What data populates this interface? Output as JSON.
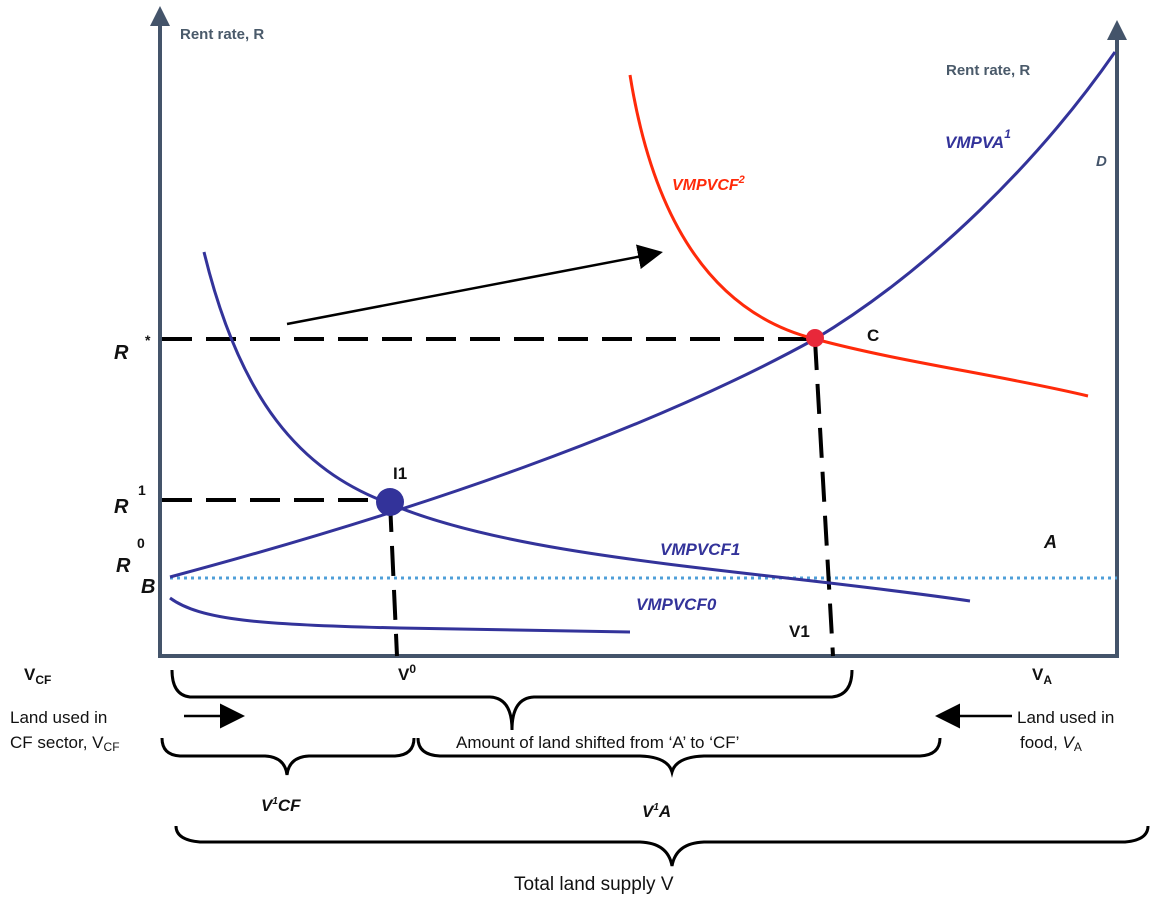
{
  "axes": {
    "left_title": "Rent rate, R",
    "right_title": "Rent rate, R",
    "left_origin_label": "V",
    "left_origin_sub": "CF",
    "right_origin_label": "V",
    "right_origin_sub": "A",
    "v0_label": "V",
    "v0_sup": "0",
    "v1_label": "V1"
  },
  "rent_levels": {
    "r_star": "R",
    "r_star_sup": "*",
    "r1": "R",
    "r1_sup": "1",
    "r0": "R",
    "r0_sup": "0"
  },
  "points": {
    "b": "B",
    "c": "C",
    "i1": "I1",
    "a": "A",
    "d": "D"
  },
  "curves": {
    "vmpvcf2": "VMPVCF",
    "vmpvcf2_sup": "2",
    "vmpva1": "VMPVA",
    "vmpva1_sup": "1",
    "vmpvcf1": "VMPVCF1",
    "vmpvcf0": "VMPVCF0"
  },
  "colors": {
    "blue_curve": "#33339a",
    "red_curve": "#ff2a0a",
    "dotted_line": "#4f9fd8",
    "axis": "#44546a"
  },
  "bottom": {
    "left_text_line1": "Land used in",
    "left_text_line2": "CF sector, V",
    "left_text_sub": "CF",
    "right_text_line1": "Land used in",
    "right_text_line2": "food, ",
    "right_text_italic": "V",
    "right_text_sub": "A",
    "shift_text": "Amount of land shifted from ‘A’ to ‘CF’",
    "v1cf": "V",
    "v1cf_sup": "1",
    "v1cf_rest": "CF",
    "v1a": "V",
    "v1a_sup": "1",
    "v1a_rest": "A",
    "total": "Total land supply V"
  }
}
